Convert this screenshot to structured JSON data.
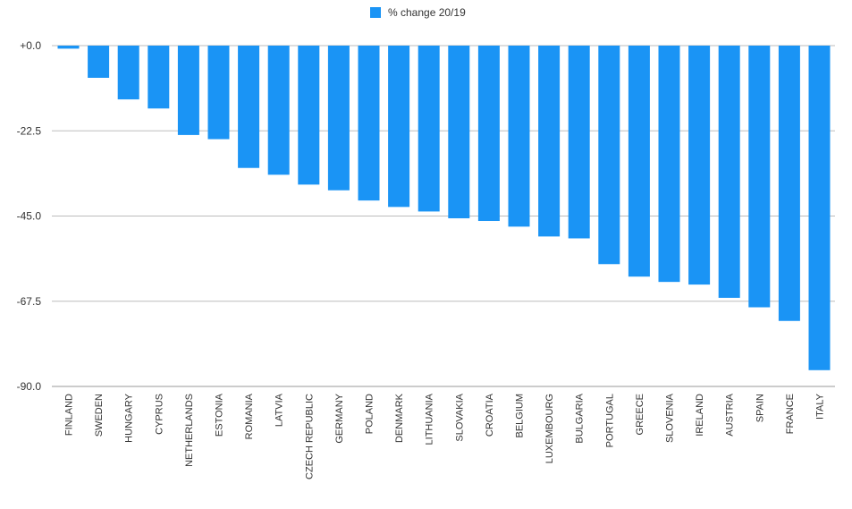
{
  "chart_data": {
    "type": "bar",
    "categories": [
      "FINLAND",
      "SWEDEN",
      "HUNGARY",
      "CYPRUS",
      "NETHERLANDS",
      "ESTONIA",
      "ROMANIA",
      "LATVIA",
      "CZECH REPUBLIC",
      "GERMANY",
      "POLAND",
      "DENMARK",
      "LITHUANIA",
      "SLOVAKIA",
      "CROATIA",
      "BELGIUM",
      "LUXEMBOURG",
      "BULGARIA",
      "PORTUGAL",
      "GREECE",
      "SLOVENIA",
      "IRELAND",
      "AUSTRIA",
      "SPAIN",
      "FRANCE",
      "ITALY"
    ],
    "series": [
      {
        "name": "% change 20/19",
        "color": "#1a94f5",
        "values": [
          -0.8,
          -8.5,
          -14.2,
          -16.6,
          -23.6,
          -24.7,
          -32.3,
          -34.1,
          -36.7,
          -38.2,
          -40.9,
          -42.6,
          -43.8,
          -45.6,
          -46.3,
          -47.8,
          -50.4,
          -50.9,
          -57.7,
          -61.0,
          -62.4,
          -63.1,
          -66.6,
          -69.1,
          -72.7,
          -85.7
        ]
      }
    ],
    "y_ticks": [
      "+0.0",
      "-22.5",
      "-45.0",
      "-67.5",
      "-90.0"
    ],
    "ylim": [
      -90,
      0
    ],
    "legend_position": "top-center",
    "grid": true
  }
}
